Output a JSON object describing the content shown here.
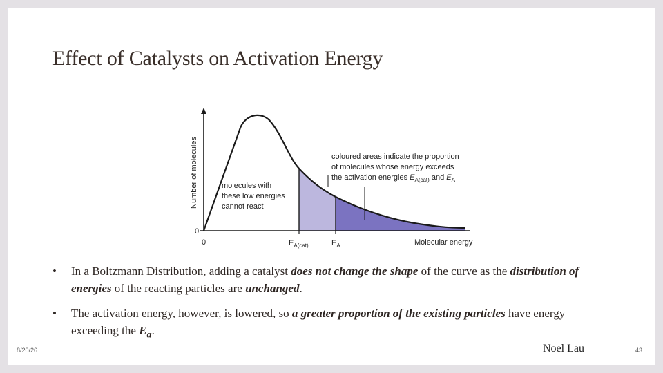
{
  "slide": {
    "title": "Effect of Catalysts on Activation Energy",
    "date": "8/20/26",
    "author": "Noel Lau",
    "page": "43"
  },
  "diagram": {
    "y_axis_label": "Number of molecules",
    "x_axis_label": "Molecular energy",
    "origin_y": "0",
    "origin_x": "0",
    "ea_cat_label": "E",
    "ea_cat_sub": "A(cat)",
    "ea_label": "E",
    "ea_sub": "A",
    "low_energy_note": [
      "molecules with",
      "these low energies",
      "cannot react"
    ],
    "area_note_line1": "coloured areas indicate the proportion",
    "area_note_line2": "of molecules whose energy exceeds",
    "area_note_line3_prefix": "the activation energies ",
    "area_note_e1": "E",
    "area_note_e1_sub": "A(cat)",
    "area_note_and": " and ",
    "area_note_e2": "E",
    "area_note_e2_sub": "A",
    "colors": {
      "light_area": "#bcb7de",
      "dark_area": "#7b73c1",
      "curve": "#1a1a1a"
    }
  },
  "bullets": [
    {
      "b1_text1": "In a Boltzmann Distribution, adding a catalyst ",
      "b1_em1": "does not change the shape",
      "b1_text2": " of the curve as the ",
      "b1_em2": "distribution of energies",
      "b1_text3": " of the reacting particles are ",
      "b1_em3": "unchanged",
      "b1_text4": "."
    },
    {
      "b2_text1": "The activation energy, however, is lowered, so ",
      "b2_em1": "a greater proportion of the existing particles",
      "b2_text2": " have energy exceeding the ",
      "b2_em2": "E",
      "b2_em2_sub": "a",
      "b2_text3": "."
    }
  ],
  "bullet_symbol": "•"
}
